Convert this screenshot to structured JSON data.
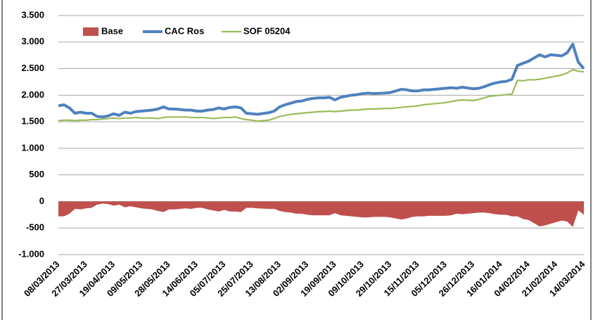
{
  "chart_data": {
    "type": "line",
    "categories": [
      "08/03/2013",
      null,
      null,
      null,
      null,
      "27/03/2013",
      null,
      null,
      null,
      null,
      "19/04/2013",
      null,
      null,
      null,
      null,
      "09/05/2013",
      null,
      null,
      null,
      null,
      "28/05/2013",
      null,
      null,
      null,
      null,
      "14/06/2013",
      null,
      null,
      null,
      null,
      "05/07/2013",
      null,
      null,
      null,
      null,
      "25/07/2013",
      null,
      null,
      null,
      null,
      "13/08/2013",
      null,
      null,
      null,
      null,
      "02/09/2013",
      null,
      null,
      null,
      null,
      "19/09/2013",
      null,
      null,
      null,
      null,
      "09/10/2013",
      null,
      null,
      null,
      null,
      "29/10/2013",
      null,
      null,
      null,
      null,
      "15/11/2013",
      null,
      null,
      null,
      null,
      "05/12/2013",
      null,
      null,
      null,
      null,
      "26/12/2013",
      null,
      null,
      null,
      null,
      "16/01/2014",
      null,
      null,
      null,
      null,
      "04/02/2014",
      null,
      null,
      null,
      null,
      "21/02/2014",
      null,
      null,
      null,
      null,
      "14/03/2014"
    ],
    "series": [
      {
        "name": "Base",
        "kind": "area",
        "color": "#c0504d",
        "values": [
          -280,
          -280,
          -230,
          -140,
          -150,
          -130,
          -120,
          -60,
          -40,
          -50,
          -80,
          -60,
          -110,
          -90,
          -110,
          -130,
          -140,
          -150,
          -180,
          -200,
          -150,
          -150,
          -140,
          -130,
          -140,
          -120,
          -120,
          -150,
          -170,
          -190,
          -160,
          -190,
          -190,
          -200,
          -120,
          -120,
          -130,
          -135,
          -140,
          -140,
          -180,
          -200,
          -210,
          -230,
          -230,
          -250,
          -260,
          -260,
          -260,
          -260,
          -220,
          -260,
          -270,
          -280,
          -290,
          -300,
          -300,
          -290,
          -290,
          -290,
          -300,
          -320,
          -340,
          -320,
          -290,
          -280,
          -280,
          -270,
          -270,
          -270,
          -270,
          -260,
          -230,
          -240,
          -230,
          -220,
          -210,
          -210,
          -220,
          -240,
          -250,
          -250,
          -280,
          -280,
          -330,
          -350,
          -410,
          -470,
          -450,
          -420,
          -390,
          -360,
          -380,
          -480,
          -170,
          -250
        ]
      },
      {
        "name": "CAC Ros",
        "kind": "line",
        "color": "#4f81bd",
        "values": [
          1800,
          1820,
          1760,
          1660,
          1680,
          1660,
          1660,
          1600,
          1590,
          1610,
          1650,
          1620,
          1680,
          1660,
          1690,
          1700,
          1710,
          1720,
          1740,
          1780,
          1740,
          1740,
          1730,
          1720,
          1720,
          1700,
          1700,
          1720,
          1730,
          1760,
          1740,
          1770,
          1780,
          1760,
          1660,
          1650,
          1640,
          1655,
          1670,
          1700,
          1780,
          1820,
          1850,
          1880,
          1890,
          1920,
          1940,
          1950,
          1950,
          1960,
          1910,
          1960,
          1980,
          2000,
          2010,
          2030,
          2040,
          2030,
          2035,
          2040,
          2050,
          2080,
          2110,
          2100,
          2080,
          2080,
          2100,
          2100,
          2110,
          2120,
          2130,
          2140,
          2130,
          2150,
          2135,
          2120,
          2130,
          2160,
          2200,
          2230,
          2250,
          2260,
          2300,
          2560,
          2600,
          2640,
          2700,
          2760,
          2720,
          2760,
          2750,
          2740,
          2800,
          2960,
          2620,
          2500
        ]
      },
      {
        "name": "SOF 05204",
        "kind": "line",
        "color": "#9bbb59",
        "values": [
          1520,
          1530,
          1530,
          1520,
          1530,
          1530,
          1540,
          1540,
          1550,
          1560,
          1570,
          1560,
          1570,
          1570,
          1580,
          1570,
          1570,
          1570,
          1560,
          1580,
          1590,
          1590,
          1590,
          1590,
          1580,
          1580,
          1580,
          1570,
          1560,
          1570,
          1580,
          1580,
          1590,
          1560,
          1540,
          1530,
          1510,
          1520,
          1530,
          1560,
          1600,
          1620,
          1640,
          1650,
          1660,
          1670,
          1680,
          1690,
          1690,
          1700,
          1690,
          1700,
          1710,
          1720,
          1720,
          1730,
          1740,
          1740,
          1745,
          1750,
          1750,
          1760,
          1770,
          1780,
          1790,
          1800,
          1820,
          1830,
          1840,
          1850,
          1860,
          1880,
          1900,
          1910,
          1905,
          1900,
          1920,
          1950,
          1980,
          1990,
          2000,
          2010,
          2020,
          2280,
          2270,
          2290,
          2290,
          2300,
          2320,
          2340,
          2360,
          2380,
          2420,
          2480,
          2450,
          2440
        ]
      }
    ],
    "ylim": [
      -1000,
      3500
    ],
    "yticks": [
      {
        "value": -1000,
        "label": "-1.000"
      },
      -500,
      0,
      500,
      {
        "value": 1000,
        "label": "1.000"
      },
      {
        "value": 1500,
        "label": "1.500"
      },
      {
        "value": 2000,
        "label": "2.000"
      },
      {
        "value": 2500,
        "label": "2.500"
      },
      {
        "value": 3000,
        "label": "3.000"
      },
      {
        "value": 3500,
        "label": "3.500"
      }
    ],
    "grid": true,
    "legend": "top-left"
  }
}
